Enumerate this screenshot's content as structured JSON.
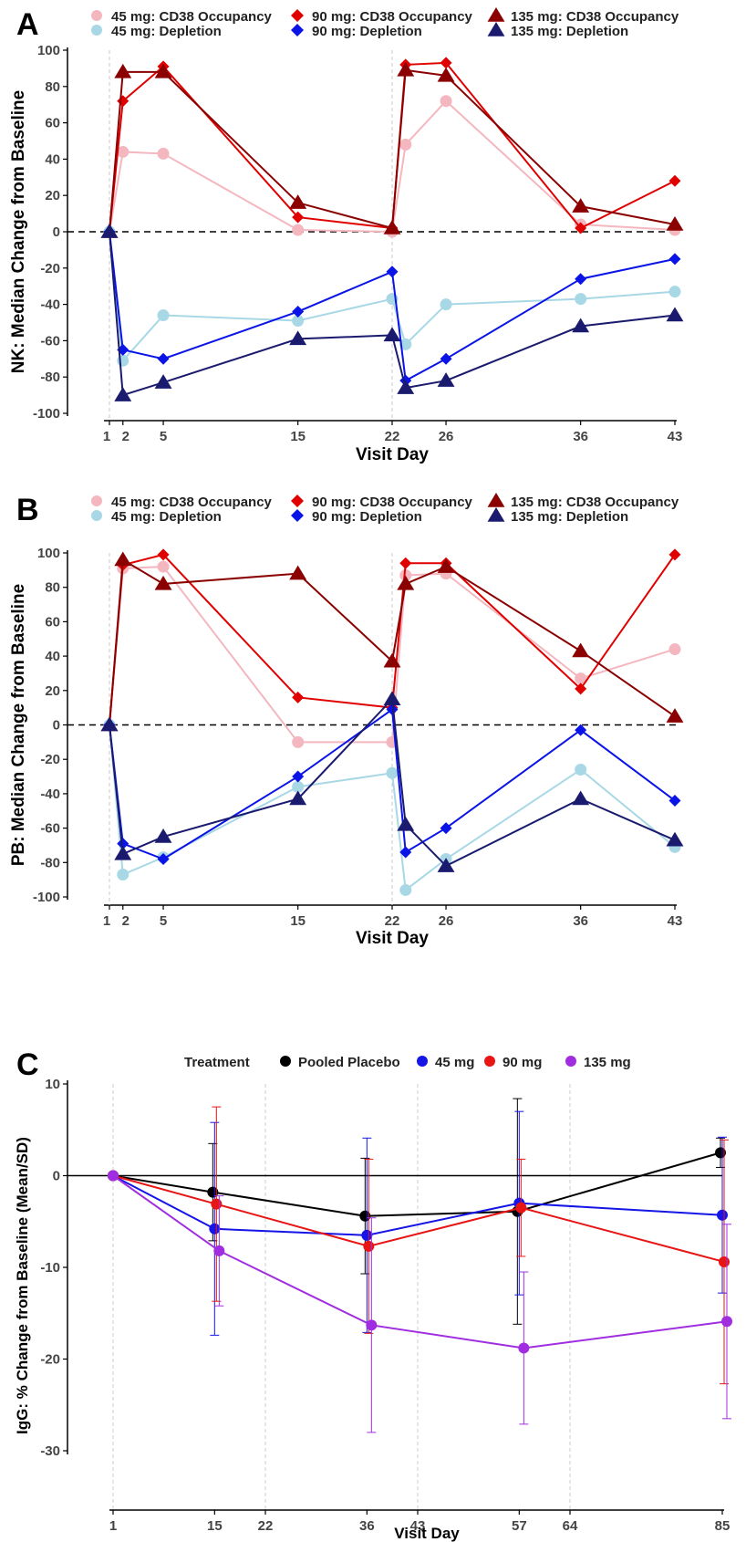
{
  "chart_data": [
    {
      "panel": "A",
      "type": "line",
      "ylabel": "NK: Median Change from Baseline",
      "xlabel": "Visit Day",
      "x_ticks": [
        1,
        2,
        5,
        15,
        22,
        26,
        36,
        43
      ],
      "ylim": [
        -100,
        100
      ],
      "y_ticks": [
        -100,
        -80,
        -60,
        -40,
        -20,
        0,
        20,
        40,
        60,
        80,
        100
      ],
      "xlim": [
        0,
        43
      ],
      "vlines": [
        1,
        22
      ],
      "hline": 0,
      "legend": [
        [
          "45 mg: CD38 Occupancy",
          "90 mg: CD38 Occupancy",
          "135 mg: CD38 Occupancy"
        ],
        [
          "45 mg: Depletion",
          "90 mg: Depletion",
          "135 mg: Depletion"
        ]
      ],
      "series": [
        {
          "name": "45 mg: CD38 Occupancy",
          "color": "#f4b7c0",
          "marker": "circle",
          "x": [
            1,
            2,
            5,
            15,
            22,
            23,
            26,
            36,
            43
          ],
          "y": [
            0,
            44,
            43,
            1,
            0,
            48,
            72,
            4,
            1
          ]
        },
        {
          "name": "90 mg: CD38 Occupancy",
          "color": "#e00000",
          "marker": "diamond",
          "x": [
            1,
            2,
            5,
            15,
            22,
            23,
            26,
            36,
            43
          ],
          "y": [
            0,
            72,
            91,
            8,
            2,
            92,
            93,
            2,
            28
          ]
        },
        {
          "name": "135 mg: CD38 Occupancy",
          "color": "#8b0000",
          "marker": "triangle",
          "x": [
            1,
            2,
            5,
            15,
            22,
            23,
            26,
            36,
            43
          ],
          "y": [
            0,
            88,
            88,
            16,
            2,
            89,
            86,
            14,
            4
          ]
        },
        {
          "name": "45 mg: Depletion",
          "color": "#a8d8e6",
          "marker": "circle",
          "x": [
            1,
            2,
            5,
            15,
            22,
            23,
            26,
            36,
            43
          ],
          "y": [
            0,
            -71,
            -46,
            -49,
            -37,
            -62,
            -40,
            -37,
            -33
          ]
        },
        {
          "name": "90 mg: Depletion",
          "color": "#0a14e6",
          "marker": "diamond",
          "x": [
            1,
            2,
            5,
            15,
            22,
            23,
            26,
            36,
            43
          ],
          "y": [
            0,
            -65,
            -70,
            -44,
            -22,
            -82,
            -70,
            -26,
            -15
          ]
        },
        {
          "name": "135 mg: Depletion",
          "color": "#1a1a6e",
          "marker": "triangle",
          "x": [
            1,
            2,
            5,
            15,
            22,
            23,
            26,
            36,
            43
          ],
          "y": [
            0,
            -90,
            -83,
            -59,
            -57,
            -86,
            -82,
            -52,
            -46
          ]
        }
      ]
    },
    {
      "panel": "B",
      "type": "line",
      "ylabel": "PB: Median Change from Baseline",
      "xlabel": "Visit Day",
      "x_ticks": [
        1,
        2,
        5,
        15,
        22,
        26,
        36,
        43
      ],
      "ylim": [
        -100,
        100
      ],
      "y_ticks": [
        -100,
        -80,
        -60,
        -40,
        -20,
        0,
        20,
        40,
        60,
        80,
        100
      ],
      "xlim": [
        0,
        43
      ],
      "vlines": [
        1,
        22
      ],
      "hline": 0,
      "legend": [
        [
          "45 mg: CD38 Occupancy",
          "90 mg: CD38 Occupancy",
          "135 mg: CD38 Occupancy"
        ],
        [
          "45 mg: Depletion",
          "90 mg: Depletion",
          "135 mg: Depletion"
        ]
      ],
      "series": [
        {
          "name": "45 mg: CD38 Occupancy",
          "color": "#f4b7c0",
          "marker": "circle",
          "x": [
            1,
            2,
            5,
            15,
            22,
            23,
            26,
            36,
            43
          ],
          "y": [
            0,
            91,
            92,
            -10,
            -10,
            87,
            88,
            27,
            44
          ]
        },
        {
          "name": "90 mg: CD38 Occupancy",
          "color": "#e00000",
          "marker": "diamond",
          "x": [
            1,
            2,
            5,
            15,
            22,
            23,
            26,
            36,
            43
          ],
          "y": [
            0,
            93,
            99,
            16,
            10,
            94,
            94,
            21,
            99
          ]
        },
        {
          "name": "135 mg: CD38 Occupancy",
          "color": "#8b0000",
          "marker": "triangle",
          "x": [
            1,
            2,
            5,
            15,
            22,
            23,
            26,
            36,
            43
          ],
          "y": [
            0,
            96,
            82,
            88,
            37,
            82,
            92,
            43,
            5
          ]
        },
        {
          "name": "45 mg: Depletion",
          "color": "#a8d8e6",
          "marker": "circle",
          "x": [
            1,
            2,
            5,
            15,
            22,
            23,
            26,
            36,
            43
          ],
          "y": [
            0,
            -87,
            -77,
            -36,
            -28,
            -96,
            -78,
            -26,
            -71
          ]
        },
        {
          "name": "90 mg: Depletion",
          "color": "#0a14e6",
          "marker": "diamond",
          "x": [
            1,
            2,
            5,
            15,
            22,
            23,
            26,
            36,
            43
          ],
          "y": [
            0,
            -69,
            -78,
            -30,
            9,
            -74,
            -60,
            -3,
            -44
          ]
        },
        {
          "name": "135 mg: Depletion",
          "color": "#1a1a6e",
          "marker": "triangle",
          "x": [
            1,
            2,
            5,
            15,
            22,
            23,
            26,
            36,
            43
          ],
          "y": [
            0,
            -75,
            -65,
            -43,
            15,
            -58,
            -82,
            -43,
            -67
          ]
        }
      ]
    },
    {
      "panel": "C",
      "type": "line",
      "ylabel": "IgG: % Change from Baseline (Mean/SD)",
      "xlabel": "Visit Day",
      "legend_title": "Treatment",
      "x_ticks": [
        1,
        15,
        22,
        36,
        43,
        57,
        64,
        85
      ],
      "ylim": [
        -30,
        10
      ],
      "y_ticks": [
        -30,
        -20,
        -10,
        0,
        10
      ],
      "xlim": [
        1,
        85
      ],
      "vlines": [
        1,
        22,
        43,
        64
      ],
      "hline": 0,
      "series": [
        {
          "name": "Pooled Placebo",
          "color": "#000000",
          "marker": "circle",
          "x": [
            1,
            15,
            36,
            57,
            85
          ],
          "y": [
            0,
            -1.8,
            -4.4,
            -3.9,
            2.5
          ],
          "sd": [
            0,
            5.3,
            6.3,
            12.3,
            1.6
          ]
        },
        {
          "name": "45 mg",
          "color": "#1515e8",
          "marker": "circle",
          "x": [
            1,
            15,
            36,
            57,
            85
          ],
          "y": [
            0,
            -5.8,
            -6.5,
            -3.0,
            -4.3
          ],
          "sd": [
            0,
            11.6,
            10.6,
            10.0,
            8.5
          ]
        },
        {
          "name": "90 mg",
          "color": "#e81515",
          "marker": "circle",
          "x": [
            1,
            15,
            36,
            57,
            85
          ],
          "y": [
            0,
            -3.1,
            -7.7,
            -3.5,
            -9.4
          ],
          "sd": [
            0,
            10.6,
            9.5,
            5.3,
            13.3
          ]
        },
        {
          "name": "135 mg",
          "color": "#a02ee0",
          "marker": "circle",
          "x": [
            1,
            15,
            36,
            57,
            85
          ],
          "y": [
            0,
            -8.2,
            -16.3,
            -18.8,
            -15.9
          ],
          "sd": [
            0,
            6.0,
            11.7,
            8.3,
            10.6
          ]
        }
      ]
    }
  ]
}
